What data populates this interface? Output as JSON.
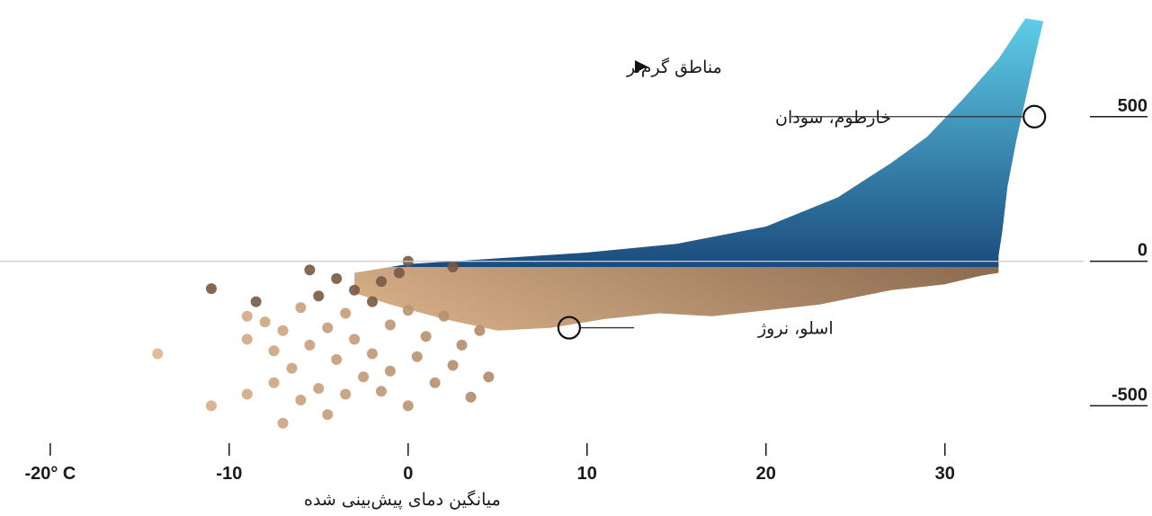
{
  "chart_data": {
    "type": "scatter",
    "xlabel": "میانگین دمای پیش‌بینی شده",
    "legend_note": "مناطق گرم‌تر",
    "x_ticks": [
      "-20° C",
      "-10",
      "0",
      "10",
      "20",
      "30"
    ],
    "x_tick_values": [
      -20,
      -10,
      0,
      10,
      20,
      30
    ],
    "y_ticks": [
      "500",
      "0",
      "-500"
    ],
    "y_tick_values": [
      500,
      0,
      -500
    ],
    "xlim": [
      -21,
      37
    ],
    "ylim": [
      -620,
      860
    ],
    "zero_line": true,
    "annotations": [
      {
        "label": "خارطوم، سودان",
        "x": 35,
        "y": 500
      },
      {
        "label": "اسلو، نروژ",
        "x": 9,
        "y": -230
      }
    ],
    "colors": {
      "positive_light": "#5ecde8",
      "positive_dark": "#0a2a63",
      "negative_light": "#dcb48c",
      "negative_dark": "#4e3222",
      "axis": "#1a1a1a",
      "zero_line": "#cccccc"
    },
    "outlier_points": [
      [
        -14,
        -320
      ],
      [
        -11,
        -95
      ],
      [
        -11,
        -500
      ],
      [
        -9,
        -190
      ],
      [
        -9,
        -270
      ],
      [
        -9,
        -460
      ],
      [
        -8.5,
        -140
      ],
      [
        -8,
        -210
      ],
      [
        -7.5,
        -310
      ],
      [
        -7.5,
        -420
      ],
      [
        -7,
        -240
      ],
      [
        -7,
        -560
      ],
      [
        -6.5,
        -370
      ],
      [
        -6,
        -160
      ],
      [
        -6,
        -480
      ],
      [
        -5.5,
        -30
      ],
      [
        -5.5,
        -290
      ],
      [
        -5,
        -120
      ],
      [
        -5,
        -440
      ],
      [
        -4.5,
        -230
      ],
      [
        -4.5,
        -530
      ],
      [
        -4,
        -60
      ],
      [
        -4,
        -340
      ],
      [
        -3.5,
        -180
      ],
      [
        -3.5,
        -460
      ],
      [
        -3,
        -100
      ],
      [
        -3,
        -270
      ],
      [
        -2.5,
        -400
      ],
      [
        -2,
        -140
      ],
      [
        -2,
        -320
      ],
      [
        -1.5,
        -70
      ],
      [
        -1.5,
        -450
      ],
      [
        -1,
        -220
      ],
      [
        -1,
        -380
      ],
      [
        -0.5,
        -40
      ],
      [
        0,
        -170
      ],
      [
        0,
        -500
      ],
      [
        0,
        0
      ],
      [
        0.5,
        -330
      ],
      [
        1,
        -260
      ],
      [
        1.5,
        -420
      ],
      [
        2,
        -190
      ],
      [
        2.5,
        -20
      ],
      [
        2.5,
        -360
      ],
      [
        3,
        -290
      ],
      [
        3.5,
        -470
      ],
      [
        4,
        -240
      ],
      [
        4.5,
        -400
      ]
    ],
    "envelope_upper": [
      [
        -3,
        -40
      ],
      [
        0,
        -10
      ],
      [
        5,
        10
      ],
      [
        10,
        30
      ],
      [
        15,
        60
      ],
      [
        20,
        120
      ],
      [
        24,
        220
      ],
      [
        27,
        340
      ],
      [
        29,
        430
      ],
      [
        31,
        560
      ],
      [
        33,
        700
      ],
      [
        34.5,
        840
      ],
      [
        35.5,
        830
      ],
      [
        35,
        700
      ],
      [
        34.5,
        560
      ],
      [
        34,
        420
      ],
      [
        33.5,
        260
      ],
      [
        33.2,
        100
      ],
      [
        33,
        20
      ]
    ],
    "envelope_lower": [
      [
        33,
        -40
      ],
      [
        32,
        -50
      ],
      [
        30,
        -80
      ],
      [
        27,
        -100
      ],
      [
        23,
        -150
      ],
      [
        20,
        -170
      ],
      [
        17,
        -190
      ],
      [
        14,
        -180
      ],
      [
        11,
        -200
      ],
      [
        8,
        -230
      ],
      [
        5,
        -240
      ],
      [
        2,
        -200
      ],
      [
        -1,
        -150
      ],
      [
        -3,
        -110
      ]
    ]
  }
}
